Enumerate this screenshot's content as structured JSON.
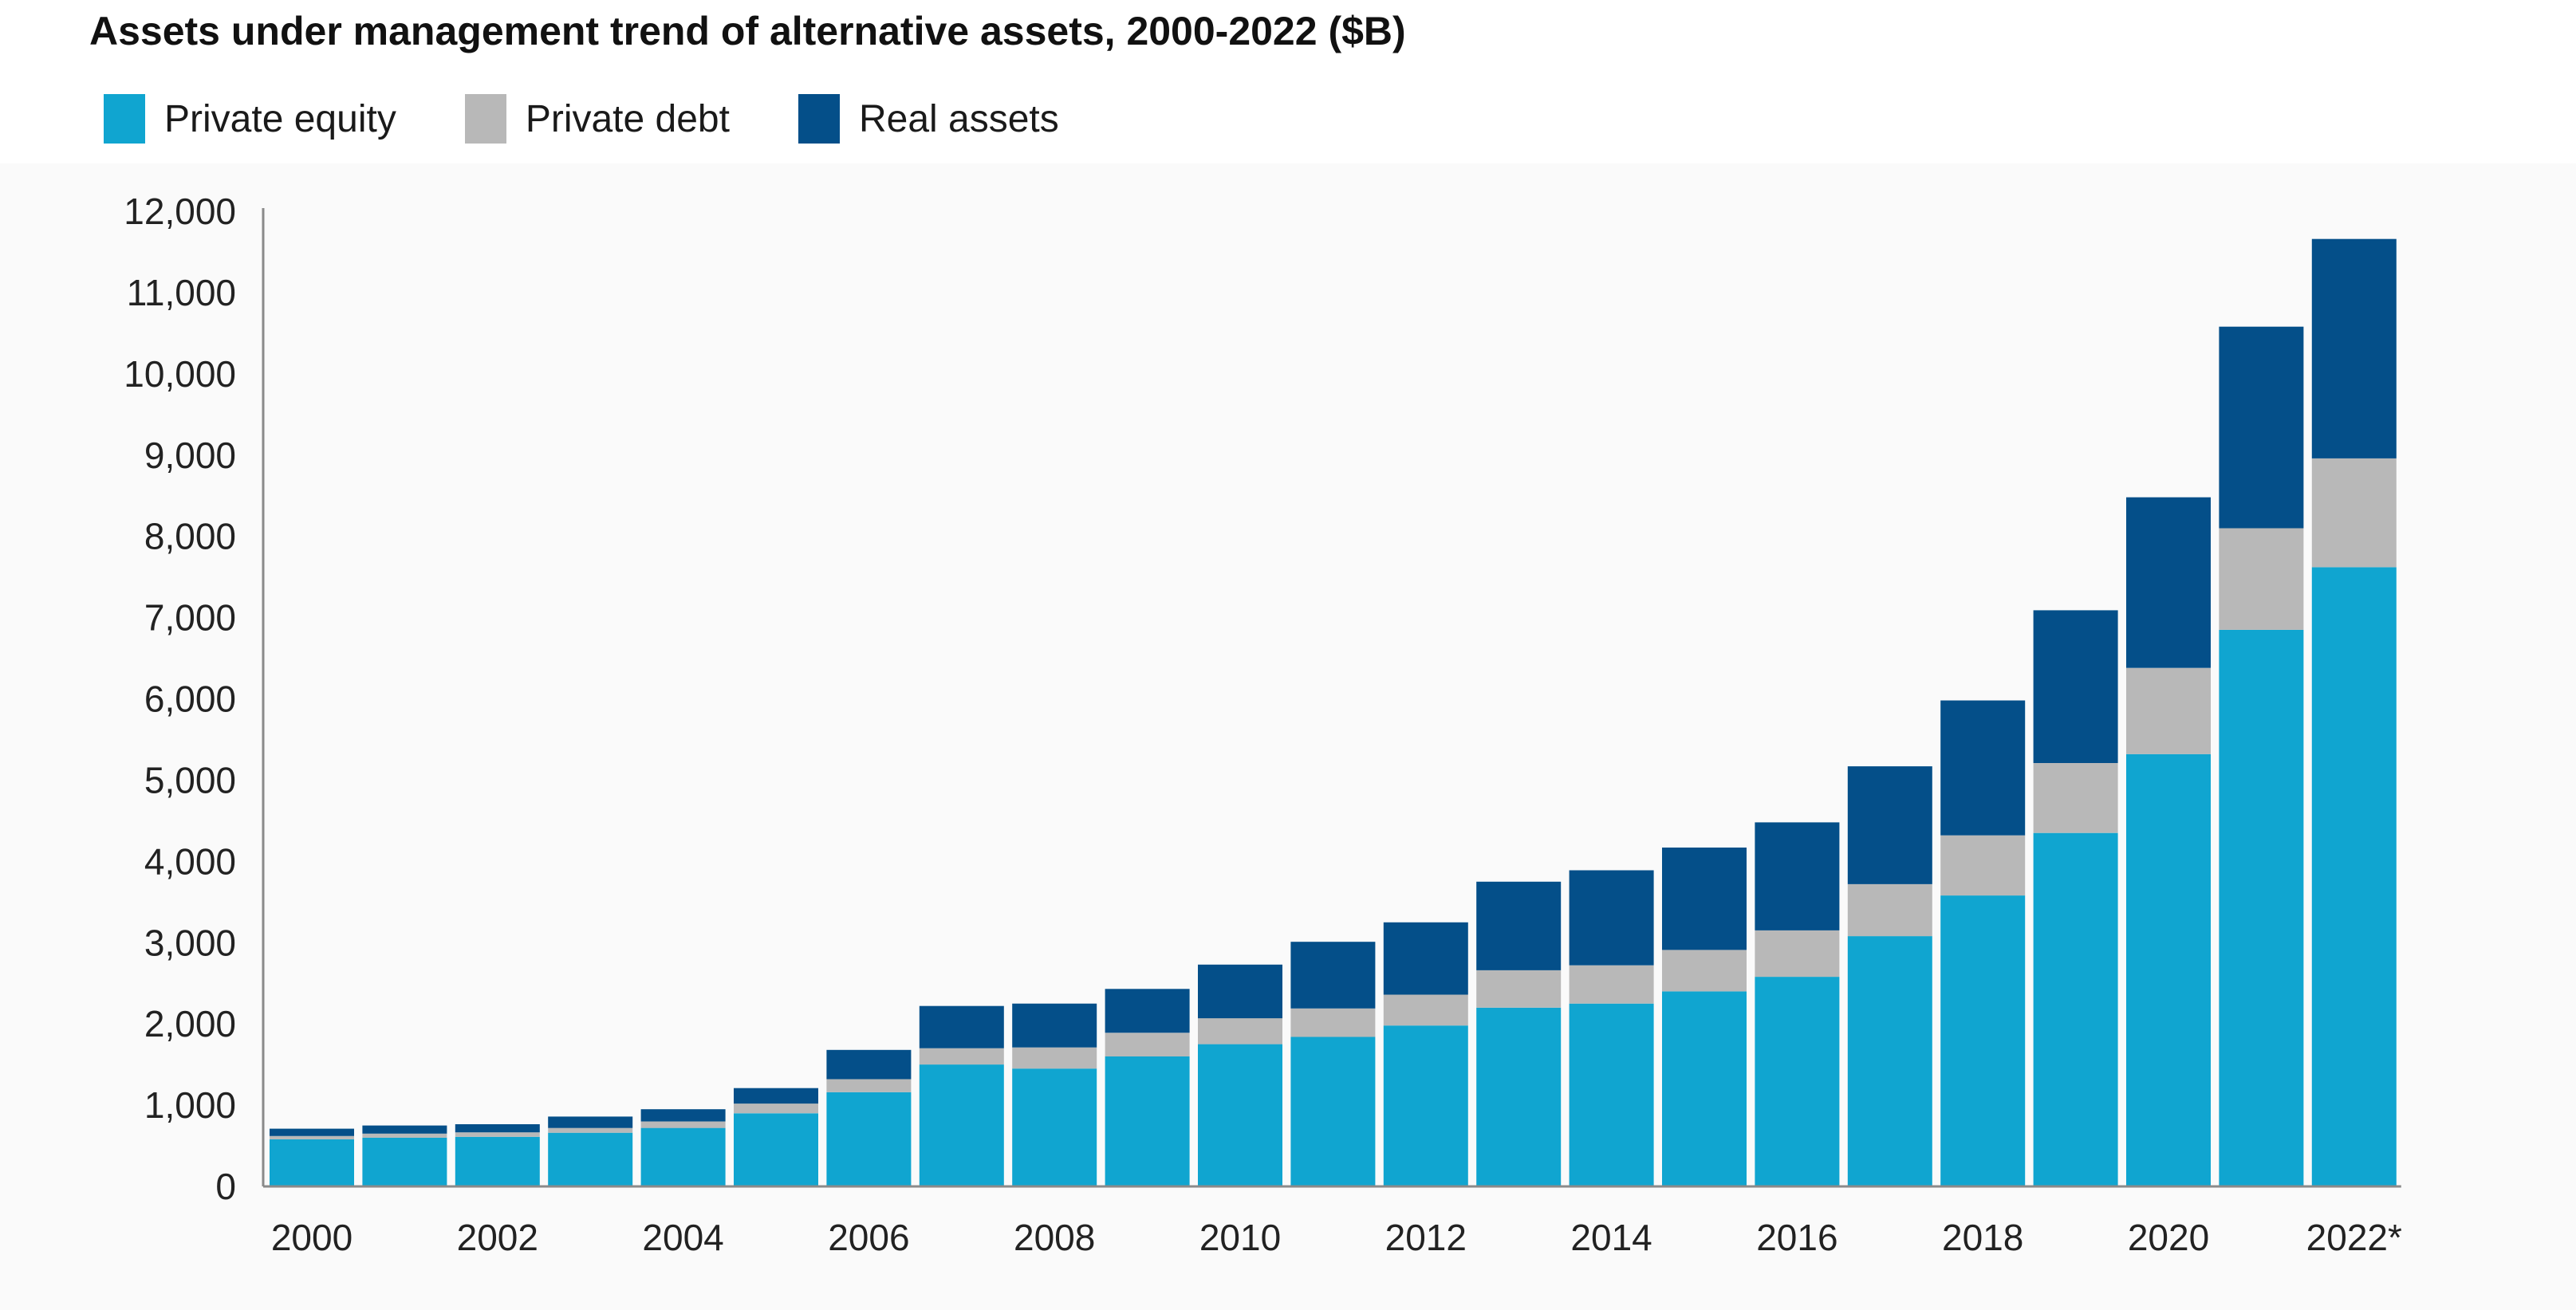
{
  "chart_data": {
    "type": "bar",
    "stacked": true,
    "title": "Assets under management trend of alternative assets, 2000-2022 ($B)",
    "xlabel": "",
    "ylabel": "",
    "ylim": [
      0,
      12000
    ],
    "yticks": [
      0,
      1000,
      2000,
      3000,
      4000,
      5000,
      6000,
      7000,
      8000,
      9000,
      10000,
      11000,
      12000
    ],
    "ytick_labels": [
      "0",
      "1,000",
      "2,000",
      "3,000",
      "4,000",
      "5,000",
      "6,000",
      "7,000",
      "8,000",
      "9,000",
      "10,000",
      "11,000",
      "12,000"
    ],
    "categories": [
      "2000",
      "2001",
      "2002",
      "2003",
      "2004",
      "2005",
      "2006",
      "2007",
      "2008",
      "2009",
      "2010",
      "2011",
      "2012",
      "2013",
      "2014",
      "2015",
      "2016",
      "2017",
      "2018",
      "2019",
      "2020",
      "2021",
      "2022*"
    ],
    "xtick_labels": [
      "2000",
      "",
      "2002",
      "",
      "2004",
      "",
      "2006",
      "",
      "2008",
      "",
      "2010",
      "",
      "2012",
      "",
      "2014",
      "",
      "2016",
      "",
      "2018",
      "",
      "2020",
      "",
      "2022*"
    ],
    "legend_position": "top-left",
    "grid": false,
    "series": [
      {
        "name": "Private equity",
        "color": "#10a5d0",
        "values": [
          580,
          600,
          610,
          660,
          720,
          900,
          1160,
          1500,
          1450,
          1600,
          1750,
          1840,
          1980,
          2200,
          2250,
          2400,
          2580,
          3080,
          3580,
          4350,
          5320,
          6850,
          7620
        ]
      },
      {
        "name": "Private debt",
        "color": "#b8b8b8",
        "values": [
          40,
          50,
          55,
          60,
          80,
          120,
          160,
          200,
          260,
          290,
          320,
          350,
          380,
          460,
          470,
          510,
          570,
          640,
          740,
          860,
          1060,
          1250,
          1340
        ]
      },
      {
        "name": "Real assets",
        "color": "#044f89",
        "values": [
          90,
          100,
          100,
          140,
          150,
          190,
          360,
          520,
          540,
          540,
          660,
          820,
          890,
          1090,
          1170,
          1260,
          1330,
          1450,
          1660,
          1880,
          2100,
          2480,
          2700
        ]
      }
    ]
  }
}
